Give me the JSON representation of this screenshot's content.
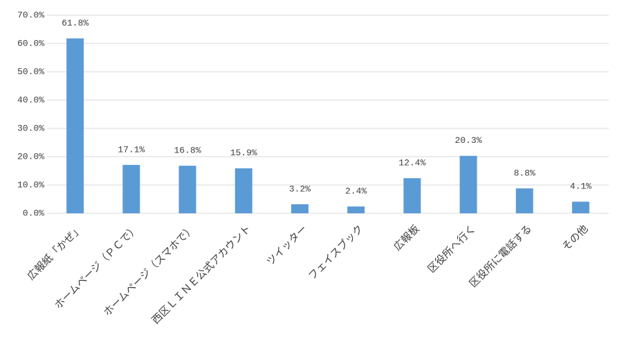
{
  "chart_data": {
    "type": "bar",
    "categories": [
      "広報紙「かぜ」",
      "ホームページ（ＰＣで）",
      "ホームページ（スマホで）",
      "西区ＬＩＮＥ公式アカウント",
      "ツイッター",
      "フェイスブック",
      "広報板",
      "区役所へ行く",
      "区役所に電話する",
      "その他"
    ],
    "values": [
      61.8,
      17.1,
      16.8,
      15.9,
      3.2,
      2.4,
      12.4,
      20.3,
      8.8,
      4.1
    ],
    "value_labels": [
      "61.8%",
      "17.1%",
      "16.8%",
      "15.9%",
      "3.2%",
      "2.4%",
      "12.4%",
      "20.3%",
      "8.8%",
      "4.1%"
    ],
    "color": "#5b9bd5",
    "ylim": [
      0,
      70
    ],
    "yticks": [
      {
        "value": 0,
        "label": "0.0%"
      },
      {
        "value": 10,
        "label": "10.0%"
      },
      {
        "value": 20,
        "label": "20.0%"
      },
      {
        "value": 30,
        "label": "30.0%"
      },
      {
        "value": 40,
        "label": "40.0%"
      },
      {
        "value": 50,
        "label": "50.0%"
      },
      {
        "value": 60,
        "label": "60.0%"
      },
      {
        "value": 70,
        "label": "70.0%"
      }
    ],
    "grid": true
  }
}
